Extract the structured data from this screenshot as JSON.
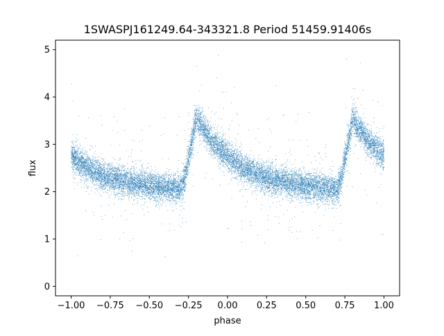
{
  "chart_data": {
    "type": "scatter",
    "title": "1SWASPJ161249.64-343321.8 Period 51459.91406s",
    "xlabel": "phase",
    "ylabel": "flux",
    "xlim": [
      -1.1,
      1.1
    ],
    "ylim": [
      -0.2,
      5.2
    ],
    "x_ticks": [
      -1.0,
      -0.75,
      -0.5,
      -0.25,
      0.0,
      0.25,
      0.5,
      0.75,
      1.0
    ],
    "x_tick_labels": [
      "−1.00",
      "−0.75",
      "−0.50",
      "−0.25",
      "0.00",
      "0.25",
      "0.50",
      "0.75",
      "1.00"
    ],
    "y_ticks": [
      0,
      1,
      2,
      3,
      4,
      5
    ],
    "y_tick_labels": [
      "0",
      "1",
      "2",
      "3",
      "4",
      "5"
    ],
    "grid": false,
    "marker_color": "#1f77b4",
    "light_curve_profile": {
      "phase": [
        -1.0,
        -0.9,
        -0.8,
        -0.7,
        -0.6,
        -0.5,
        -0.4,
        -0.3,
        -0.27,
        -0.25,
        -0.22,
        -0.2,
        -0.15,
        -0.1,
        0.0,
        0.1,
        0.2,
        0.3,
        0.4,
        0.5,
        0.6,
        0.7,
        0.73,
        0.75,
        0.78,
        0.8,
        0.85,
        0.9,
        1.0
      ],
      "flux": [
        2.75,
        2.5,
        2.35,
        2.25,
        2.18,
        2.12,
        2.08,
        2.05,
        2.3,
        2.7,
        3.2,
        3.55,
        3.3,
        3.05,
        2.75,
        2.5,
        2.35,
        2.25,
        2.18,
        2.12,
        2.08,
        2.05,
        2.3,
        2.7,
        3.2,
        3.55,
        3.3,
        3.05,
        2.75
      ]
    },
    "scatter_spread": 0.15,
    "approx_point_count": 14000
  }
}
